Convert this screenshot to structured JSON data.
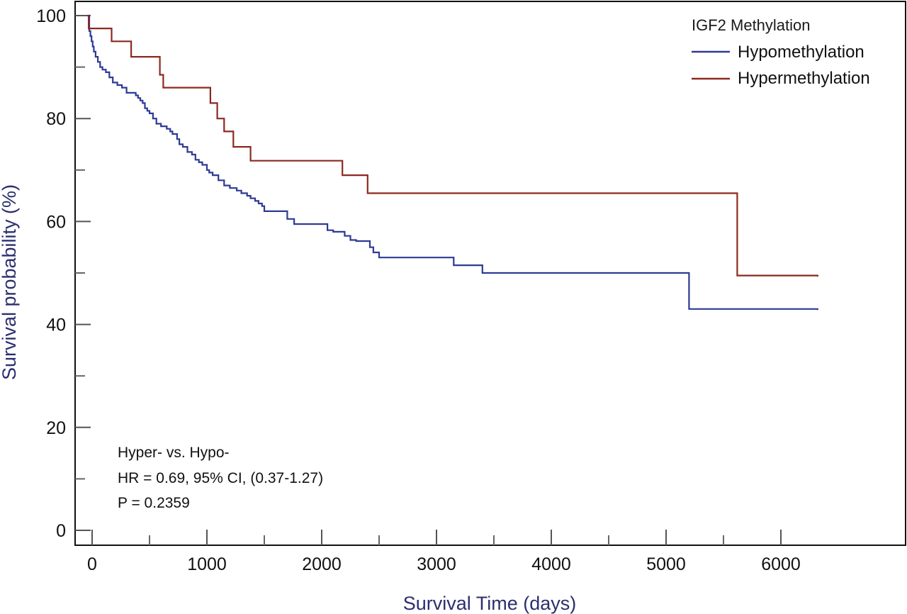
{
  "chart_data": {
    "type": "line",
    "xlabel": "Survival Time (days)",
    "ylabel": "Survival probability (%)",
    "xlim": [
      -150,
      7000
    ],
    "ylim": [
      -3,
      102
    ],
    "x_ticks": [
      0,
      1000,
      2000,
      3000,
      4000,
      5000,
      6000
    ],
    "y_ticks": [
      0,
      20,
      40,
      60,
      80,
      100
    ],
    "y_minor_ticks": [
      10,
      30,
      50,
      70,
      90
    ],
    "x_minor_ticks": [
      500,
      1500,
      2500,
      3500,
      4500,
      5500
    ],
    "grid": false,
    "legend": {
      "title": "IGF2 Methylation",
      "position": "top-right"
    },
    "annotations": [
      "Hyper- vs. Hypo-",
      "HR = 0.69, 95% CI, (0.37-1.27)",
      "P = 0.2359"
    ],
    "series": [
      {
        "name": "Hypomethylation",
        "color": "#2e3a94",
        "step": true,
        "x": [
          -40,
          -25,
          -15,
          -5,
          5,
          15,
          30,
          50,
          70,
          90,
          120,
          150,
          180,
          220,
          260,
          300,
          340,
          380,
          400,
          420,
          440,
          460,
          480,
          500,
          530,
          560,
          600,
          650,
          680,
          700,
          740,
          760,
          790,
          830,
          870,
          900,
          930,
          960,
          1000,
          1020,
          1050,
          1100,
          1150,
          1200,
          1260,
          1300,
          1350,
          1380,
          1420,
          1450,
          1480,
          1500,
          1600,
          1700,
          1760,
          1800,
          1850,
          1950,
          2050,
          2100,
          2200,
          2250,
          2300,
          2400,
          2420,
          2450,
          2500,
          2600,
          3000,
          3150,
          3300,
          3400,
          3450,
          4000,
          5000,
          5200,
          5500,
          6000,
          6320
        ],
        "y": [
          100,
          97,
          96,
          95,
          94,
          93,
          92,
          91,
          90,
          89.5,
          89,
          88,
          87,
          86.5,
          86,
          85,
          85,
          84.5,
          84,
          83.5,
          83,
          82,
          81.5,
          81,
          80,
          79,
          78.5,
          78,
          77.5,
          77,
          76,
          75,
          74.5,
          73.5,
          73,
          72,
          71.5,
          71,
          70,
          69.5,
          69,
          68,
          67,
          66.5,
          66,
          65.5,
          65,
          64.5,
          64,
          63.5,
          63,
          62,
          62,
          60.5,
          59.5,
          59.5,
          59.5,
          59.5,
          58.3,
          58,
          57.2,
          56.4,
          56.2,
          56.2,
          55,
          54,
          53,
          53,
          53,
          51.5,
          51.5,
          50,
          50,
          50,
          50,
          43,
          43,
          43,
          42.8
        ]
      },
      {
        "name": "Hypermethylation",
        "color": "#8b2a1e",
        "step": true,
        "x": [
          -40,
          -30,
          170,
          340,
          590,
          620,
          1000,
          1030,
          1090,
          1150,
          1230,
          1380,
          2000,
          2180,
          2400,
          2450,
          3000,
          4000,
          5000,
          5620,
          6320
        ],
        "y": [
          100,
          97.5,
          95,
          92,
          88.5,
          86,
          86,
          83,
          80,
          77.5,
          74.5,
          71.8,
          71.8,
          69,
          65.5,
          65.5,
          65.5,
          65.5,
          65.5,
          49.5,
          49.3
        ]
      }
    ]
  }
}
